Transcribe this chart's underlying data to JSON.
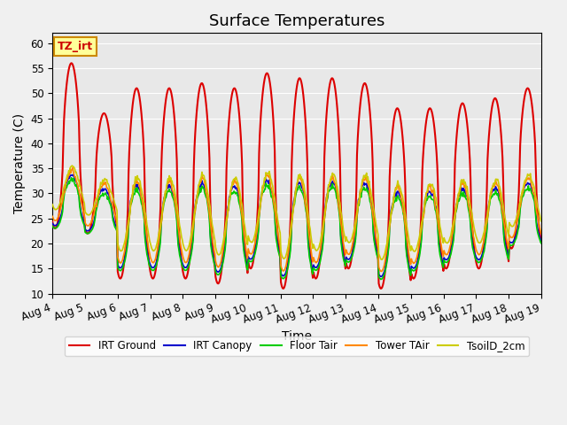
{
  "title": "Surface Temperatures",
  "ylabel": "Temperature (C)",
  "xlabel": "Time",
  "ylim": [
    10,
    62
  ],
  "yticks": [
    10,
    15,
    20,
    25,
    30,
    35,
    40,
    45,
    50,
    55,
    60
  ],
  "annotation_text": "TZ_irt",
  "annotation_bg": "#ffff99",
  "annotation_fg": "#cc0000",
  "annotation_border": "#cc8800",
  "plot_bg": "#e8e8e8",
  "fig_bg": "#f0f0f0",
  "series": [
    {
      "label": "IRT Ground",
      "color": "#dd0000",
      "lw": 1.5
    },
    {
      "label": "IRT Canopy",
      "color": "#0000cc",
      "lw": 1.2
    },
    {
      "label": "Floor Tair",
      "color": "#00cc00",
      "lw": 1.2
    },
    {
      "label": "Tower TAir",
      "color": "#ff8800",
      "lw": 1.2
    },
    {
      "label": "TsoilD_2cm",
      "color": "#cccc00",
      "lw": 1.2
    }
  ],
  "xtick_positions": [
    0,
    1,
    2,
    3,
    4,
    5,
    6,
    7,
    8,
    9,
    10,
    11,
    12,
    13,
    14,
    15
  ],
  "xtick_labels": [
    "Aug 4",
    "Aug 5",
    "Aug 6",
    "Aug 7",
    "Aug 8",
    "Aug 9",
    "Aug 10",
    "Aug 11",
    "Aug 12",
    "Aug 13",
    "Aug 14",
    "Aug 15",
    "Aug 16",
    "Aug 17",
    "Aug 18",
    "Aug 19"
  ],
  "title_fontsize": 13,
  "axis_fontsize": 10,
  "tick_fontsize": 8.5,
  "irt_peaks": [
    56,
    46,
    51,
    51,
    52,
    51,
    54,
    53,
    53,
    52,
    47,
    47,
    48,
    49,
    51
  ],
  "irt_troughs": [
    23,
    22,
    13,
    13,
    13,
    12,
    15,
    11,
    13,
    15,
    11,
    13,
    15,
    15,
    19
  ],
  "peak_phase": 0.583,
  "n_days": 15,
  "pts_per_day": 48
}
